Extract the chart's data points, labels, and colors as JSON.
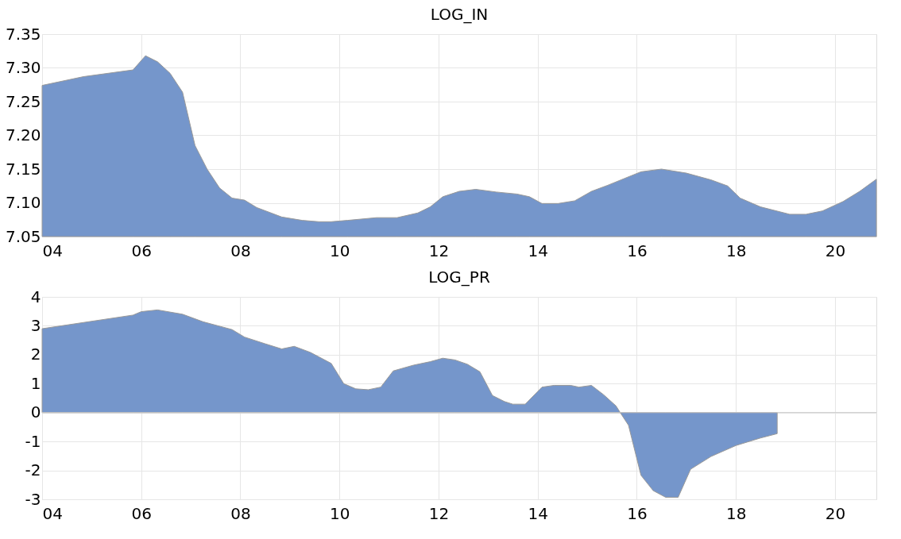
{
  "chart_data": [
    {
      "type": "area",
      "title": "LOG_IN",
      "x": [
        "2004-01",
        "2004-11",
        "2005-11",
        "2006-02",
        "2006-05",
        "2006-08",
        "2006-11",
        "2007-02",
        "2007-05",
        "2007-08",
        "2007-11",
        "2008-02",
        "2008-05",
        "2008-11",
        "2009-04",
        "2009-08",
        "2009-11",
        "2010-03",
        "2010-10",
        "2011-03",
        "2011-08",
        "2011-11",
        "2012-02",
        "2012-06",
        "2012-10",
        "2013-03",
        "2013-08",
        "2013-11",
        "2014-02",
        "2014-06",
        "2014-10",
        "2015-02",
        "2015-06",
        "2015-10",
        "2016-02",
        "2016-07",
        "2017-01",
        "2017-07",
        "2017-11",
        "2018-02",
        "2018-07",
        "2019-02",
        "2019-06",
        "2019-10",
        "2020-03",
        "2020-07",
        "2020-11"
      ],
      "series": [
        {
          "color": "#7596cb",
          "values": [
            7.274,
            7.287,
            7.297,
            7.318,
            7.309,
            7.292,
            7.264,
            7.185,
            7.15,
            7.122,
            7.107,
            7.104,
            7.093,
            7.079,
            7.074,
            7.072,
            7.072,
            7.074,
            7.078,
            7.078,
            7.085,
            7.094,
            7.109,
            7.117,
            7.12,
            7.116,
            7.113,
            7.109,
            7.099,
            7.099,
            7.103,
            7.117,
            7.126,
            7.136,
            7.146,
            7.15,
            7.144,
            7.134,
            7.125,
            7.107,
            7.094,
            7.083,
            7.083,
            7.088,
            7.102,
            7.117,
            7.135
          ]
        }
      ],
      "xlim": [
        "2004-01",
        "2020-11"
      ],
      "xticks": [
        {
          "value": "2004",
          "label": "04"
        },
        {
          "value": "2006",
          "label": "06"
        },
        {
          "value": "2008",
          "label": "08"
        },
        {
          "value": "2010",
          "label": "10"
        },
        {
          "value": "2012",
          "label": "12"
        },
        {
          "value": "2014",
          "label": "14"
        },
        {
          "value": "2016",
          "label": "16"
        },
        {
          "value": "2018",
          "label": "18"
        },
        {
          "value": "2020",
          "label": "20"
        }
      ],
      "ylim": [
        7.05,
        7.35
      ],
      "yticks": [
        {
          "value": 7.05,
          "label": "7.05"
        },
        {
          "value": 7.1,
          "label": "7.10"
        },
        {
          "value": 7.15,
          "label": "7.15"
        },
        {
          "value": 7.2,
          "label": "7.20"
        },
        {
          "value": 7.25,
          "label": "7.25"
        },
        {
          "value": 7.3,
          "label": "7.30"
        },
        {
          "value": 7.35,
          "label": "7.35"
        }
      ],
      "grid": true
    },
    {
      "type": "area",
      "title": "LOG_PR",
      "x": [
        "2004-01",
        "2005-11",
        "2006-01",
        "2006-05",
        "2006-11",
        "2007-04",
        "2007-11",
        "2008-02",
        "2008-07",
        "2008-11",
        "2009-02",
        "2009-06",
        "2009-11",
        "2010-02",
        "2010-05",
        "2010-08",
        "2010-11",
        "2011-02",
        "2011-07",
        "2011-11",
        "2012-02",
        "2012-05",
        "2012-08",
        "2012-11",
        "2013-02",
        "2013-05",
        "2013-07",
        "2013-10",
        "2014-02",
        "2014-05",
        "2014-09",
        "2014-11",
        "2015-02",
        "2015-05",
        "2015-08",
        "2015-09",
        "2015-11",
        "2016-02",
        "2016-05",
        "2016-08",
        "2016-11",
        "2017-02",
        "2017-07",
        "2018-01",
        "2018-07",
        "2018-11"
      ],
      "series": [
        {
          "color": "#7596cb",
          "values": [
            2.9,
            3.37,
            3.49,
            3.55,
            3.4,
            3.14,
            2.87,
            2.61,
            2.38,
            2.2,
            2.29,
            2.08,
            1.7,
            1.0,
            0.82,
            0.79,
            0.88,
            1.44,
            1.64,
            1.76,
            1.88,
            1.82,
            1.67,
            1.41,
            0.59,
            0.38,
            0.29,
            0.29,
            0.88,
            0.94,
            0.94,
            0.88,
            0.94,
            0.62,
            0.23,
            0.0,
            -0.44,
            -2.17,
            -2.7,
            -2.93,
            -2.93,
            -1.96,
            -1.52,
            -1.14,
            -0.88,
            -0.73
          ]
        }
      ],
      "xlim": [
        "2004-01",
        "2020-11"
      ],
      "xticks": [
        {
          "value": "2004",
          "label": "04"
        },
        {
          "value": "2006",
          "label": "06"
        },
        {
          "value": "2008",
          "label": "08"
        },
        {
          "value": "2010",
          "label": "10"
        },
        {
          "value": "2012",
          "label": "12"
        },
        {
          "value": "2014",
          "label": "14"
        },
        {
          "value": "2016",
          "label": "16"
        },
        {
          "value": "2018",
          "label": "18"
        },
        {
          "value": "2020",
          "label": "20"
        }
      ],
      "ylim": [
        -3,
        4
      ],
      "yticks": [
        -3,
        -2,
        -1,
        0,
        1,
        2,
        3,
        4
      ],
      "ref_lines": [
        {
          "axis": "y",
          "value": 0,
          "color": "#c8c8c8"
        }
      ],
      "grid": true
    }
  ]
}
